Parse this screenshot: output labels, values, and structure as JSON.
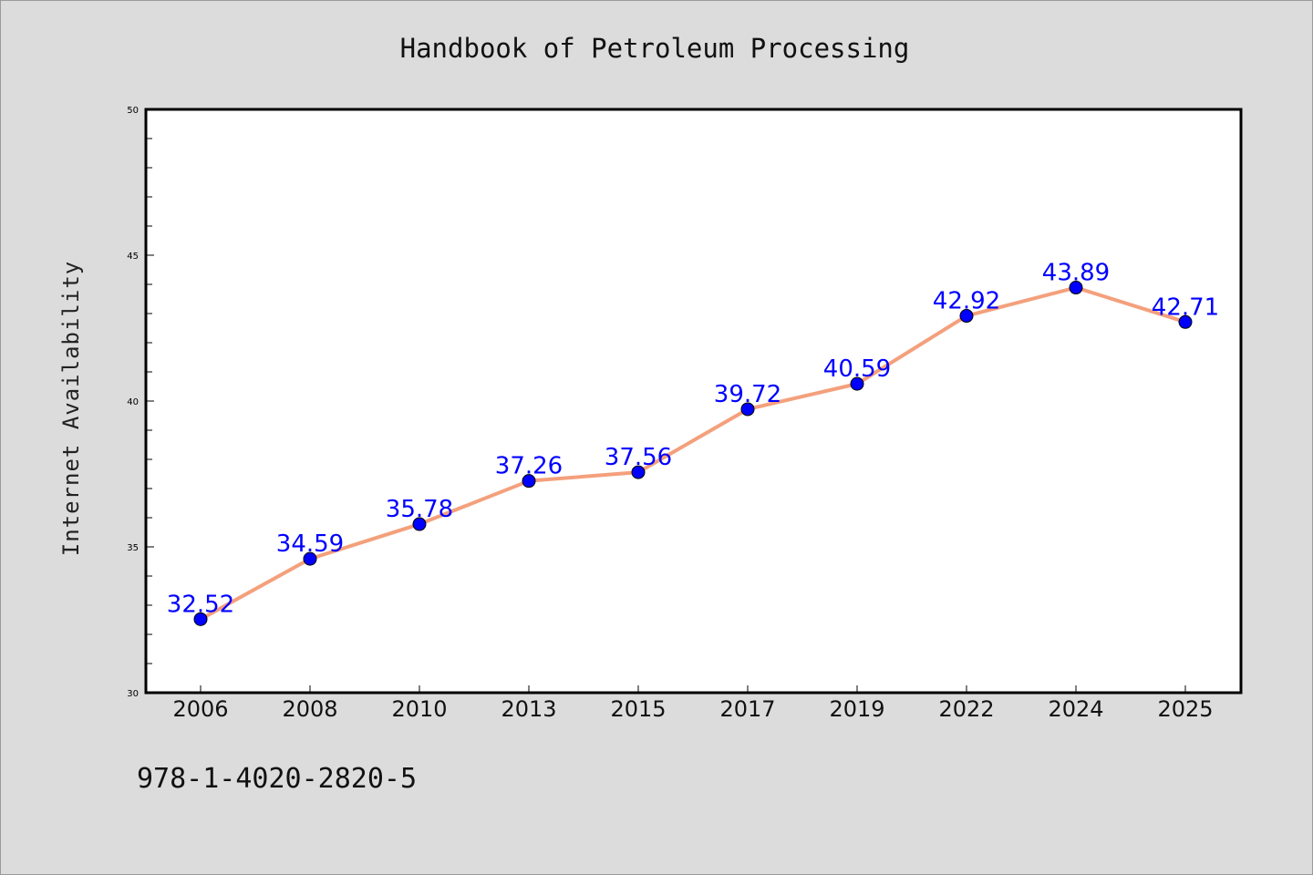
{
  "footer_text": "978-1-4020-2820-5",
  "colors": {
    "background": "#dcdcdc",
    "plot_background": "#ffffff",
    "line": "#f4a07c",
    "marker": "#0000ff",
    "data_label": "#0000ff"
  },
  "chart_data": {
    "type": "line",
    "title": "Handbook of Petroleum Processing",
    "xlabel": "",
    "ylabel": "Internet Availability",
    "categories": [
      "2006",
      "2008",
      "2010",
      "2013",
      "2015",
      "2017",
      "2019",
      "2022",
      "2024",
      "2025"
    ],
    "series": [
      {
        "values": [
          32.52,
          34.59,
          35.78,
          37.26,
          37.56,
          39.72,
          40.59,
          42.92,
          43.89,
          42.71
        ],
        "data_labels": [
          "32.52",
          "34.59",
          "35.78",
          "37.26",
          "37.56",
          "39.72",
          "40.59",
          "42.92",
          "43.89",
          "42.71"
        ]
      }
    ],
    "ylim": [
      30,
      50
    ],
    "yticks": [
      "30",
      "35",
      "40",
      "45",
      "50"
    ],
    "grid": false,
    "legend": "none"
  }
}
